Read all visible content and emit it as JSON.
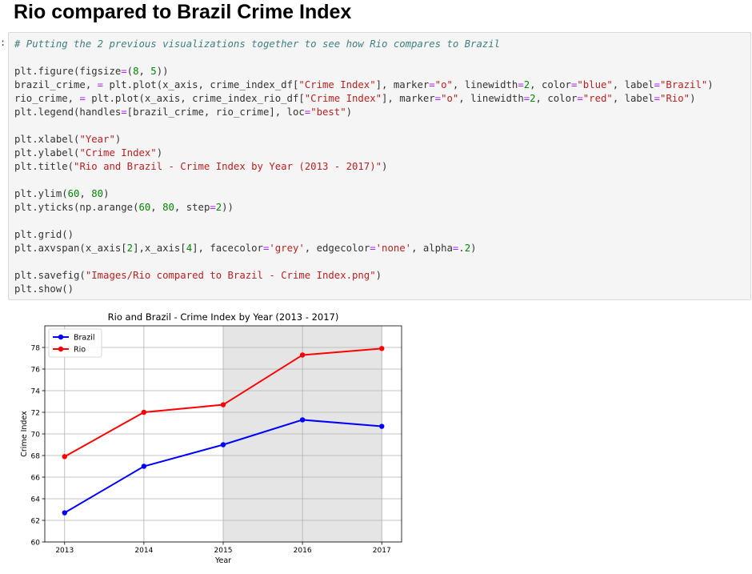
{
  "page": {
    "heading": "Rio compared to Brazil Crime Index",
    "prompt_marker": ":"
  },
  "code_cell": {
    "lines": [
      "# Putting the 2 previous visualizations together to see how Rio compares to Brazil",
      "",
      "plt.figure(figsize=(8, 5))",
      "brazil_crime, = plt.plot(x_axis, crime_index_df[\"Crime Index\"], marker=\"o\", linewidth=2, color=\"blue\", label=\"Brazil\")",
      "rio_crime, = plt.plot(x_axis, crime_index_rio_df[\"Crime Index\"], marker=\"o\", linewidth=2, color=\"red\", label=\"Rio\")",
      "plt.legend(handles=[brazil_crime, rio_crime], loc=\"best\")",
      "",
      "plt.xlabel(\"Year\")",
      "plt.ylabel(\"Crime Index\")",
      "plt.title(\"Rio and Brazil - Crime Index by Year (2013 - 2017)\")",
      "",
      "plt.ylim(60, 80)",
      "plt.yticks(np.arange(60, 80, step=2))",
      "",
      "plt.grid()",
      "plt.axvspan(x_axis[2],x_axis[4], facecolor='grey', edgecolor='none', alpha=.2)",
      "",
      "plt.savefig(\"Images/Rio compared to Brazil - Crime Index.png\")",
      "plt.show()"
    ]
  },
  "chart_data": {
    "type": "line",
    "title": "Rio and Brazil - Crime Index by Year (2013 - 2017)",
    "xlabel": "Year",
    "ylabel": "Crime Index",
    "x": [
      2013,
      2014,
      2015,
      2016,
      2017
    ],
    "ylim": [
      60,
      80
    ],
    "yticks": [
      60,
      62,
      64,
      66,
      68,
      70,
      72,
      74,
      76,
      78
    ],
    "grid": true,
    "legend_loc": "top-left",
    "highlight_span": [
      2015,
      2017
    ],
    "highlight_color": "#e5e5e5",
    "series": [
      {
        "name": "Brazil",
        "color": "#0000ff",
        "values": [
          62.7,
          67.0,
          69.0,
          71.3,
          70.7
        ]
      },
      {
        "name": "Rio",
        "color": "#ff0000",
        "values": [
          67.9,
          72.0,
          72.7,
          77.3,
          77.9
        ]
      }
    ]
  }
}
